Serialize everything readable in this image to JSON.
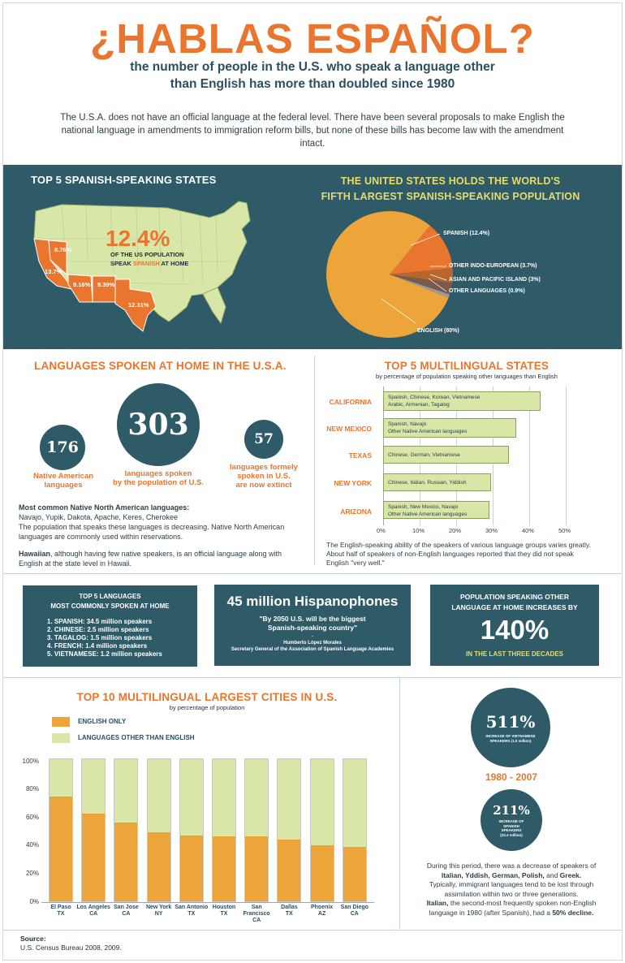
{
  "header": {
    "title": "¿HABLAS ESPAÑOL?",
    "subtitle_line1": "the number of people in the U.S. who speak a language other",
    "subtitle_line2": "than English has more than doubled since 1980",
    "intro": "The U.S.A. does not have an official language at the federal level. There have been several proposals to make English the national language in amendments to immigration reform bills, but none of these bills has become law with the amendment intact."
  },
  "states": {
    "heading": "TOP 5 SPANISH-SPEAKING STATES",
    "pct": "12.4%",
    "caption_line1": "OF THE US POPULATION",
    "caption_pre": "SPEAK ",
    "caption_highlight": "SPANISH",
    "caption_post": " AT HOME",
    "state_labels": [
      "8.76%",
      "13.7%",
      "9.16%",
      "9.39%",
      "12.31%"
    ]
  },
  "world": {
    "heading_line1": "THE UNITED STATES HOLDS THE WORLD'S",
    "heading_line2": "FIFTH LARGEST SPANISH-SPEAKING POPULATION",
    "slices": [
      {
        "label": "SPANISH (12.4%)",
        "value": 12.4,
        "color": "#e9752e"
      },
      {
        "label": "OTHER INDO-EUROPEAN (3.7%)",
        "value": 3.7,
        "color": "#b9652e"
      },
      {
        "label": "ASIAN AND PACIFIC ISLAND (3%)",
        "value": 3,
        "color": "#7a5a4a"
      },
      {
        "label": "OTHER LANGUAGES (0.9%)",
        "value": 0.9,
        "color": "#9a9a9a"
      },
      {
        "label": "ENGLISH (80%)",
        "value": 80,
        "color": "#eda53a"
      }
    ]
  },
  "languages": {
    "heading": "LANGUAGES SPOKEN AT HOME IN THE U.S.A.",
    "n1": "176",
    "l1a": "Native American",
    "l1b": "languages",
    "n2": "303",
    "l2a": "languages spoken",
    "l2b": "by the population of U.S.",
    "n3": "57",
    "l3a": "languages formely",
    "l3b": "spoken in U.S.",
    "l3c": "are now extinct",
    "native_heading": "Most common Native North American languages:",
    "native_list": "Navajo, Yupik, Dakota, Apache, Keres, Cherokee",
    "native_text": "The population that speaks these languages is decreasing. Native North American languages are commonly used within reservations.",
    "hawaii_bold": "Hawaiian",
    "hawaii_text": ", although having few native speakers, is an official language along with English at the state level in Hawaii."
  },
  "multilingual_states": {
    "heading": "TOP 5 MULTILINGUAL STATES",
    "subheading": "by percentage of population speaking other languages than English",
    "bars": [
      {
        "state": "CALIFORNIA",
        "value": 43,
        "text1": "Spanish, Chinese, Korean, Vietnamese",
        "text2": "Arabic,  Armenian, Tagalog"
      },
      {
        "state": "NEW MEXICO",
        "value": 36.5,
        "text1": "Spanish,  Navajo",
        "text2": "Other Native American languages"
      },
      {
        "state": "TEXAS",
        "value": 34.5,
        "text1": "Chinese, German, Vietnamese",
        "text2": ""
      },
      {
        "state": "NEW YORK",
        "value": 29.5,
        "text1": "Chinese, Italian, Russian, Yiddish",
        "text2": ""
      },
      {
        "state": "ARIZONA",
        "value": 29,
        "text1": "Spanish, New Mexico, Navajo",
        "text2": "Other Native American languages"
      }
    ],
    "ticks": [
      "0%",
      "10%",
      "20%",
      "30%",
      "40%",
      "50%"
    ],
    "note": "The English-speaking ability of the speakers of various language groups varies greatly. About half of speakers of non-English languages reported that they did not speak English \"very well.\""
  },
  "top5box": {
    "heading_line1": "TOP 5 LANGUAGES",
    "heading_line2": "MOST COMMONLY SPOKEN AT HOME",
    "items": [
      {
        "n": "1. SPANISH:",
        "v": " 34.5 million speakers"
      },
      {
        "n": "2. CHINESE:",
        "v": " 2.5 million speakers"
      },
      {
        "n": "3. TAGALOG:",
        "v": " 1.5 million speakers"
      },
      {
        "n": "4. FRENCH:",
        "v": " 1.4 million speakers"
      },
      {
        "n": "5. VIETNAMESE:",
        "v": " 1.2 million speakers"
      }
    ]
  },
  "hispanophones": {
    "heading": "45 million Hispanophones",
    "quote_line1": "\"By 2050 U.S. will be the biggest",
    "quote_line2": "Spanish-speaking country\"",
    "dash": "-",
    "author": "Humberto López Morales",
    "role": "Secretary General of the Association of Spanish Language Academies"
  },
  "increase": {
    "heading_line1": "POPULATION SPEAKING OTHER",
    "heading_line2": "LANGUAGE AT HOME INCREASES BY",
    "value": "140%",
    "footer": "IN THE LAST THREE DECADES"
  },
  "cities": {
    "heading": "TOP 10 MULTILINGUAL LARGEST CITIES IN U.S.",
    "subheading": "by percentage of population",
    "legend_english": "ENGLISH ONLY",
    "legend_other": "LANGUAGES OTHER THAN ENGLISH",
    "yticks": [
      "100%",
      "80%",
      "60%",
      "40%",
      "20%",
      "0%"
    ]
  },
  "chart_data": {
    "type": "bar",
    "categories": [
      "El Paso TX",
      "Los Angeles CA",
      "San Jose CA",
      "New York NY",
      "San Antonio TX",
      "Houston TX",
      "San Francisco CA",
      "Dallas TX",
      "Phoenix AZ",
      "San Diego CA"
    ],
    "city_line1": [
      "El Paso",
      "Los Angeles",
      "San Jose",
      "New York",
      "San Antonio",
      "Houston",
      "San Francisco",
      "Dallas",
      "Phoenix",
      "San Diego"
    ],
    "city_line2": [
      "TX",
      "CA",
      "CA",
      "NY",
      "TX",
      "TX",
      "CA",
      "TX",
      "AZ",
      "CA"
    ],
    "series": [
      {
        "name": "ENGLISH ONLY",
        "values": [
          73,
          61,
          55,
          48,
          46,
          45,
          45,
          43,
          39,
          38
        ]
      },
      {
        "name": "LANGUAGES OTHER THAN ENGLISH",
        "values": [
          27,
          39,
          45,
          52,
          54,
          55,
          55,
          57,
          61,
          62
        ]
      }
    ],
    "ylim": [
      0,
      100
    ],
    "stacked": true,
    "colors": {
      "english": "#eda53a",
      "other": "#d8e6a8"
    }
  },
  "growth": {
    "v1": "511%",
    "c1a": "INCREASE OF VIETNAMESE",
    "c1b": "SPEAKERS (1.0 million)",
    "period": "1980 - 2007",
    "v2": "211%",
    "c2a": "INCREASE OF",
    "c2b": "SPANISH",
    "c2c": "SPEAKERS",
    "c2d": "(23.4 million)",
    "t1": "During this period, there was a decrease of speakers of",
    "t2": "Italian, Yddish, German, Polish,",
    "t2b": " and ",
    "t2c": "Greek.",
    "t3": "Typically, immigrant languages tend to be lost through",
    "t4": "assimilation within two or three generations.",
    "t5": "Italian,",
    "t5b": " the second-most frequently spoken non-English",
    "t6": "language in 1980 (after Spanish), had a ",
    "t6b": "50% decline."
  },
  "source": {
    "label": "Source:",
    "text": "U.S. Census Bureau 2008, 2009."
  }
}
